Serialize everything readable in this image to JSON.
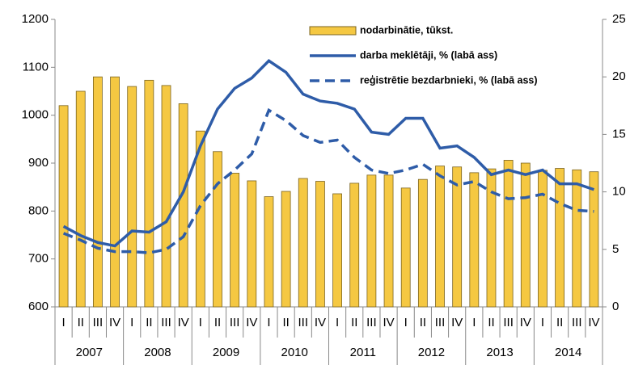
{
  "chart_data": {
    "type": "bar",
    "categories": [
      "I",
      "II",
      "III",
      "IV",
      "I",
      "II",
      "III",
      "IV",
      "I",
      "II",
      "III",
      "IV",
      "I",
      "II",
      "III",
      "IV",
      "I",
      "II",
      "III",
      "IV",
      "I",
      "II",
      "III",
      "IV",
      "I",
      "II",
      "III",
      "IV",
      "I",
      "II",
      "III",
      "IV"
    ],
    "years": [
      "2007",
      "2008",
      "2009",
      "2010",
      "2011",
      "2012",
      "2013",
      "2014"
    ],
    "series": [
      {
        "name": "nodarbinātie, tūkst.",
        "type": "bar",
        "color": "#f5c842",
        "values": [
          1020,
          1050,
          1080,
          1080,
          1060,
          1073,
          1062,
          1024,
          967,
          924,
          879,
          863,
          830,
          841,
          868,
          862,
          836,
          858,
          875,
          875,
          848,
          866,
          894,
          892,
          880,
          888,
          906,
          900,
          885,
          889,
          886,
          882
        ]
      },
      {
        "name": "darba meklētāji, % (labā ass)",
        "type": "line",
        "axis": "y2",
        "color": "#2e5ca8",
        "dash": "solid",
        "values": [
          7.0,
          6.2,
          5.6,
          5.3,
          6.6,
          6.5,
          7.4,
          10.0,
          14.0,
          17.2,
          19.0,
          19.9,
          21.4,
          20.4,
          18.5,
          17.9,
          17.7,
          17.2,
          15.2,
          15.0,
          16.4,
          16.4,
          13.8,
          14.0,
          13.0,
          11.5,
          11.9,
          11.5,
          11.9,
          10.7,
          10.7,
          10.2
        ]
      },
      {
        "name": "reģistrētie bezdarbnieki, % (labā ass)",
        "type": "line",
        "axis": "y2",
        "color": "#2e5ca8",
        "dash": "dashed",
        "values": [
          6.4,
          5.8,
          5.1,
          4.8,
          4.8,
          4.7,
          5.0,
          6.1,
          8.8,
          10.7,
          11.9,
          13.3,
          17.1,
          16.2,
          14.9,
          14.3,
          14.5,
          13.0,
          11.9,
          11.6,
          11.9,
          12.4,
          11.4,
          10.6,
          10.9,
          10.0,
          9.4,
          9.5,
          9.8,
          9.0,
          8.4,
          8.3
        ]
      }
    ],
    "ylim": [
      600,
      1200
    ],
    "yticks": [
      600,
      700,
      800,
      900,
      1000,
      1100,
      1200
    ],
    "y2lim": [
      0,
      25
    ],
    "y2ticks": [
      0,
      5,
      10,
      15,
      20,
      25
    ]
  }
}
